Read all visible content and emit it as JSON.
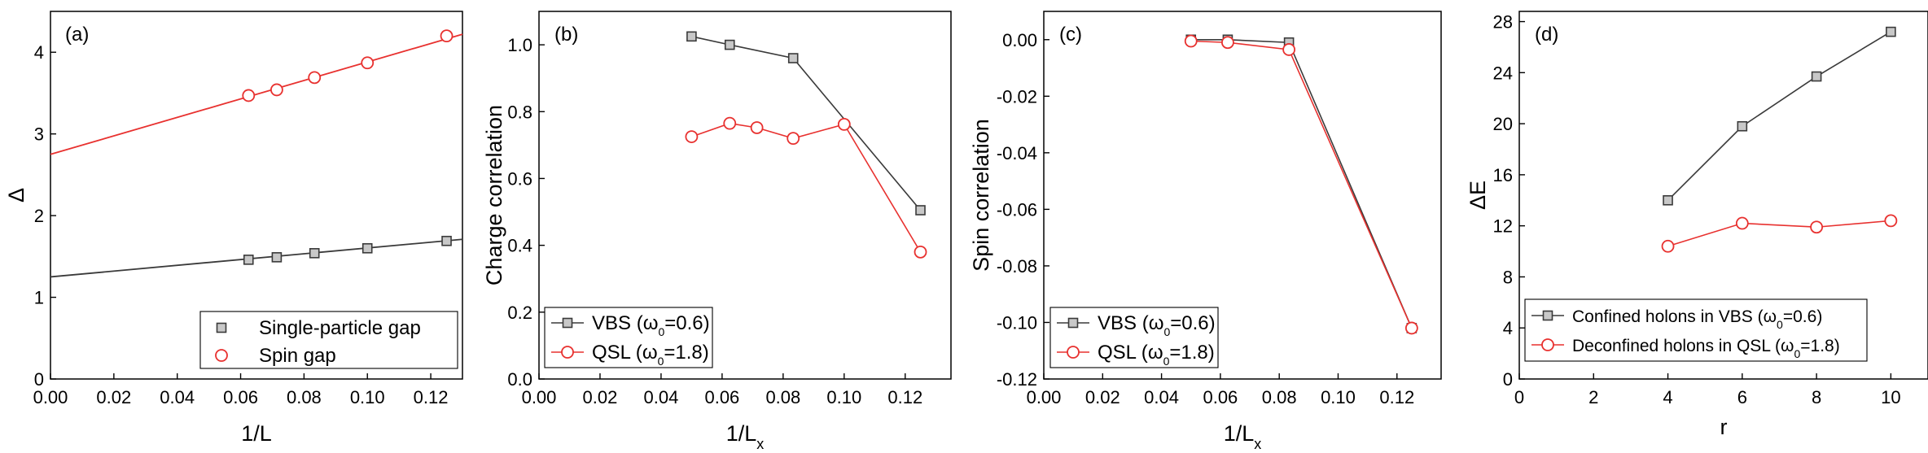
{
  "colors": {
    "black_series": "#3a3a3a",
    "red_series": "#e8312f",
    "marker_fill_black": "#c8c8c8",
    "marker_fill_red": "#ffffff"
  },
  "chart_data": [
    {
      "id": "a",
      "type": "scatter",
      "tag": "(a)",
      "xlabel": "1/L",
      "ylabel": "Δ",
      "xlim": [
        0.0,
        0.13
      ],
      "ylim": [
        0,
        4.5
      ],
      "xticks": [
        "0.00",
        "0.02",
        "0.04",
        "0.06",
        "0.08",
        "0.10",
        "0.12"
      ],
      "yticks": [
        "0",
        "1",
        "2",
        "3",
        "4"
      ],
      "series": [
        {
          "name": "Single-particle gap",
          "color": "#3a3a3a",
          "marker": "square",
          "x": [
            0.0625,
            0.0714,
            0.0833,
            0.1,
            0.125
          ],
          "values": [
            1.46,
            1.49,
            1.54,
            1.6,
            1.69
          ],
          "fit": [
            [
              0.0,
              1.25
            ],
            [
              0.13,
              1.71
            ]
          ]
        },
        {
          "name": "Spin gap",
          "color": "#e8312f",
          "marker": "circle",
          "x": [
            0.0625,
            0.0714,
            0.0833,
            0.1,
            0.125
          ],
          "values": [
            3.47,
            3.54,
            3.69,
            3.87,
            4.2
          ],
          "fit": [
            [
              0.0,
              2.75
            ],
            [
              0.13,
              4.22
            ]
          ]
        }
      ],
      "legend": {
        "position": "bottom-right",
        "entries": [
          "Single-particle gap",
          "Spin gap"
        ]
      }
    },
    {
      "id": "b",
      "type": "line",
      "tag": "(b)",
      "xlabel": "1/L",
      "xlabel_sub": "x",
      "ylabel": "Charge correlation",
      "xlim": [
        0.0,
        0.135
      ],
      "ylim": [
        0,
        1.1
      ],
      "xticks": [
        "0.00",
        "0.02",
        "0.04",
        "0.06",
        "0.08",
        "0.10",
        "0.12"
      ],
      "yticks": [
        "0.0",
        "0.2",
        "0.4",
        "0.6",
        "0.8",
        "1.0"
      ],
      "series": [
        {
          "name": "VBS",
          "param": "ω",
          "param_sub": "0",
          "param_val": "=0.6",
          "color": "#3a3a3a",
          "marker": "square",
          "x": [
            0.05,
            0.0625,
            0.0833,
            0.125
          ],
          "values": [
            1.025,
            1.0,
            0.96,
            0.505
          ]
        },
        {
          "name": "QSL",
          "param": "ω",
          "param_sub": "0",
          "param_val": "=1.8",
          "color": "#e8312f",
          "marker": "circle",
          "x": [
            0.05,
            0.0625,
            0.0714,
            0.0833,
            0.1,
            0.125
          ],
          "values": [
            0.725,
            0.765,
            0.752,
            0.72,
            0.762,
            0.38
          ]
        }
      ],
      "legend": {
        "position": "bottom-left"
      }
    },
    {
      "id": "c",
      "type": "line",
      "tag": "(c)",
      "xlabel": "1/L",
      "xlabel_sub": "x",
      "ylabel": "Spin correlation",
      "xlim": [
        0.0,
        0.135
      ],
      "ylim": [
        -0.12,
        0.01
      ],
      "xticks": [
        "0.00",
        "0.02",
        "0.04",
        "0.06",
        "0.08",
        "0.10",
        "0.12"
      ],
      "yticks": [
        "-0.12",
        "-0.10",
        "-0.08",
        "-0.06",
        "-0.04",
        "-0.02",
        "0.00"
      ],
      "series": [
        {
          "name": "VBS",
          "param": "ω",
          "param_sub": "0",
          "param_val": "=0.6",
          "color": "#3a3a3a",
          "marker": "square",
          "x": [
            0.05,
            0.0625,
            0.0833,
            0.125
          ],
          "values": [
            0.0,
            0.0,
            -0.001,
            -0.102
          ]
        },
        {
          "name": "QSL",
          "param": "ω",
          "param_sub": "0",
          "param_val": "=1.8",
          "color": "#e8312f",
          "marker": "circle",
          "x": [
            0.05,
            0.0625,
            0.0833,
            0.125
          ],
          "values": [
            -0.0005,
            -0.001,
            -0.0035,
            -0.102
          ]
        }
      ],
      "legend": {
        "position": "bottom-left"
      }
    },
    {
      "id": "d",
      "type": "line",
      "tag": "(d)",
      "xlabel": "r",
      "ylabel": "ΔE",
      "xlim": [
        0,
        11
      ],
      "ylim": [
        0,
        28.8
      ],
      "xticks": [
        "0",
        "2",
        "4",
        "6",
        "8",
        "10"
      ],
      "yticks": [
        "0",
        "4",
        "8",
        "12",
        "16",
        "20",
        "24",
        "28"
      ],
      "series": [
        {
          "name": "Confined holons in VBS",
          "param": "ω",
          "param_sub": "0",
          "param_val": "=0.6",
          "color": "#3a3a3a",
          "marker": "square",
          "x": [
            4,
            6,
            8,
            10
          ],
          "values": [
            14.0,
            19.8,
            23.7,
            27.2
          ]
        },
        {
          "name": "Deconfined holons in QSL",
          "param": "ω",
          "param_sub": "0",
          "param_val": "=1.8",
          "color": "#e8312f",
          "marker": "circle",
          "x": [
            4,
            6,
            8,
            10
          ],
          "values": [
            10.4,
            12.2,
            11.9,
            12.4
          ]
        }
      ],
      "legend": {
        "position": "bottom-right"
      }
    }
  ]
}
